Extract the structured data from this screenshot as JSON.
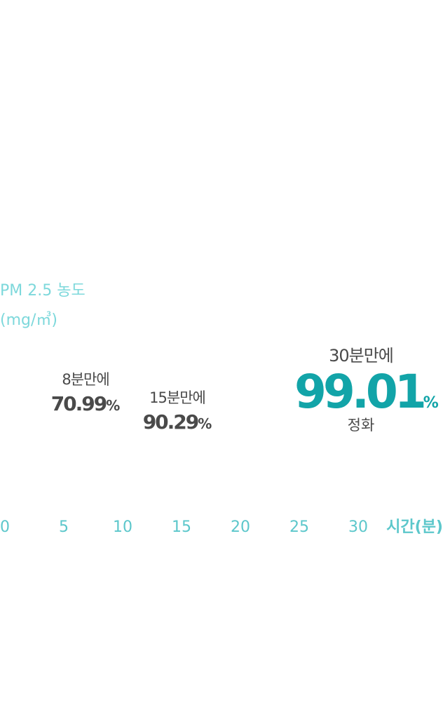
{
  "chart_data": {
    "type": "line",
    "ylabel_line1": "PM 2.5 농도",
    "ylabel_line2": "(mg/㎥)",
    "xlabel": "시간(분)",
    "xticks": [
      "0",
      "5",
      "10",
      "15",
      "20",
      "25",
      "30"
    ],
    "xlim": [
      0,
      30
    ],
    "annotations": [
      {
        "minute": 8,
        "caption": "8분만에",
        "value": "70.99",
        "unit": "%"
      },
      {
        "minute": 15,
        "caption": "15분만에",
        "value": "90.29",
        "unit": "%"
      },
      {
        "minute": 30,
        "caption": "30분만에",
        "value": "99.01",
        "unit": "%",
        "sub": "정화"
      }
    ]
  },
  "colors": {
    "axis_text": "#5cc7cb",
    "ylabel_text": "#7dd8db",
    "highlight": "#12a4a8",
    "annotation_text": "#4a4a4a"
  }
}
